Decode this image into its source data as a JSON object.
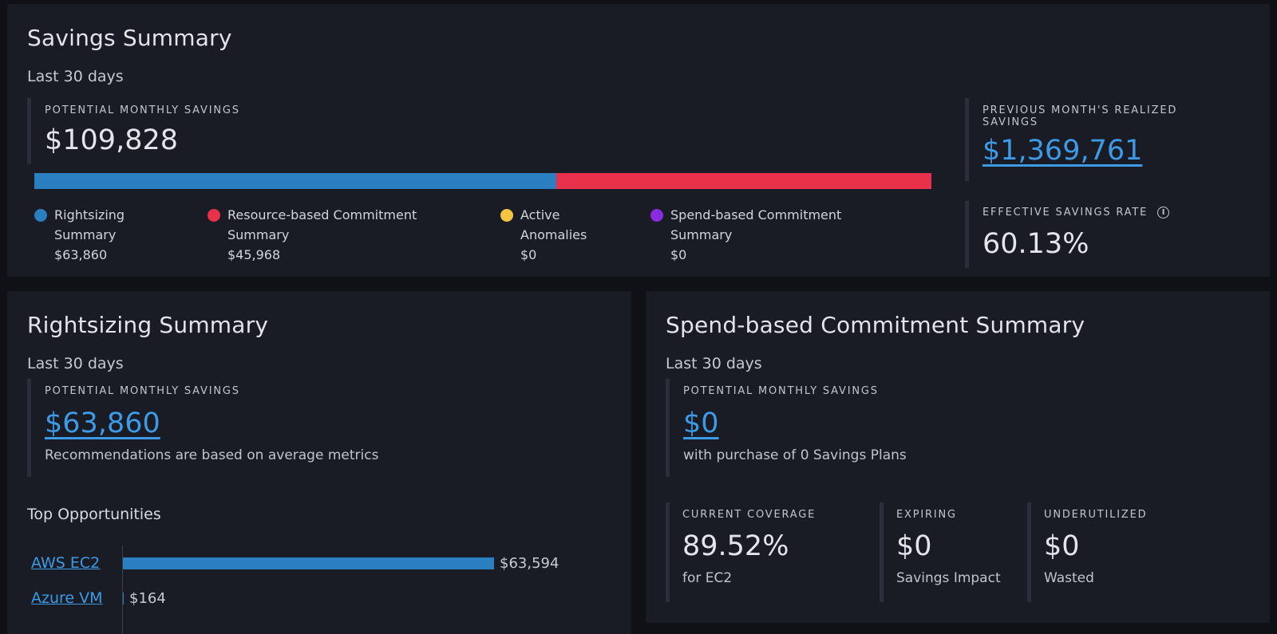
{
  "savings_summary": {
    "title": "Savings Summary",
    "period": "Last 30 days",
    "potential": {
      "label": "POTENTIAL MONTHLY SAVINGS",
      "value": "$109,828"
    },
    "breakdown_bar": [
      {
        "name": "Rightsizing Summary",
        "value": 63860,
        "color": "#2a7fc0"
      },
      {
        "name": "Resource-based Commitment Summary",
        "value": 45968,
        "color": "#e8304a"
      }
    ],
    "legend": [
      {
        "line1": "Rightsizing",
        "line2": "Summary",
        "amount": "$63,860",
        "color": "#2a7fc0"
      },
      {
        "line1": "Resource-based Commitment",
        "line2": "Summary",
        "amount": "$45,968",
        "color": "#e8304a"
      },
      {
        "line1": "Active",
        "line2": "Anomalies",
        "amount": "$0",
        "color": "#f4c542"
      },
      {
        "line1": "Spend-based Commitment",
        "line2": "Summary",
        "amount": "$0",
        "color": "#8a2be2"
      }
    ],
    "previous_month": {
      "label_line1": "PREVIOUS MONTH'S REALIZED",
      "label_line2": "SAVINGS",
      "value": "$1,369,761"
    },
    "effective_rate": {
      "label": "EFFECTIVE SAVINGS RATE",
      "value": "60.13%",
      "icon": "info-icon"
    }
  },
  "rightsizing": {
    "title": "Rightsizing Summary",
    "period": "Last 30 days",
    "potential": {
      "label": "POTENTIAL MONTHLY SAVINGS",
      "value": "$63,860",
      "note": "Recommendations are based on average metrics"
    },
    "top_title": "Top Opportunities",
    "opportunities": [
      {
        "name": "AWS EC2",
        "value": 63594,
        "display": "$63,594"
      },
      {
        "name": "Azure VM",
        "value": 164,
        "display": "$164"
      }
    ]
  },
  "spend_based": {
    "title": "Spend-based Commitment Summary",
    "period": "Last 30 days",
    "potential": {
      "label": "POTENTIAL MONTHLY SAVINGS",
      "value": "$0",
      "note": "with purchase of 0 Savings Plans"
    },
    "coverage": {
      "label": "CURRENT COVERAGE",
      "value": "89.52%",
      "note": "for EC2"
    },
    "expiring": {
      "label": "EXPIRING",
      "value": "$0",
      "note": "Savings Impact"
    },
    "underutilized": {
      "label": "UNDERUTILIZED",
      "value": "$0",
      "note": "Wasted"
    }
  }
}
